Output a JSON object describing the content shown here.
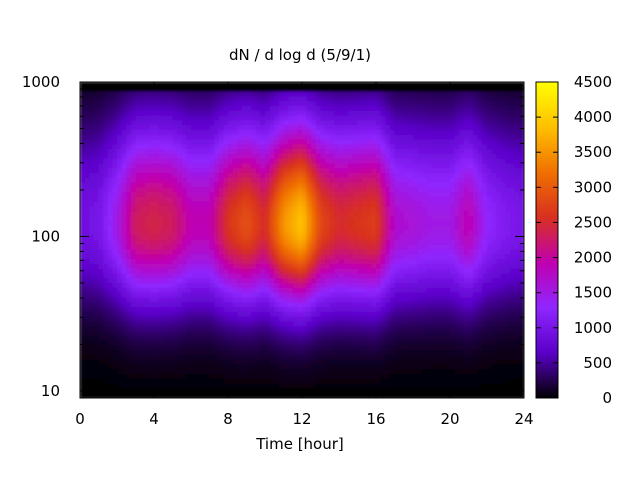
{
  "chart_data": {
    "type": "heatmap",
    "title": "dN / d log d (5/9/1)",
    "xlabel": "Time [hour]",
    "ylabel": "",
    "x_range": [
      0,
      24
    ],
    "y_range": [
      9,
      1000
    ],
    "y_scale": "log",
    "x_ticks": [
      0,
      4,
      8,
      12,
      16,
      20,
      24
    ],
    "x_tick_labels": [
      "0",
      "4",
      "8",
      "12",
      "16",
      "20",
      "24"
    ],
    "y_ticks": [
      10,
      100,
      1000
    ],
    "y_tick_labels": [
      "10",
      "100",
      "1000"
    ],
    "colorbar": {
      "range": [
        0,
        4500
      ],
      "ticks": [
        0,
        500,
        1000,
        1500,
        2000,
        2500,
        3000,
        3500,
        4000,
        4500
      ],
      "tick_labels": [
        "0",
        "500",
        "1000",
        "1500",
        "2000",
        "2500",
        "3000",
        "3500",
        "4000",
        "4500"
      ],
      "colormap": "gnuplot-pm3d",
      "colors": [
        "#000000",
        "#5a00c8",
        "#8f26ff",
        "#c000b0",
        "#d83020",
        "#f07000",
        "#ffc000",
        "#ffff00"
      ]
    },
    "mode_diameter": 120,
    "time_series": {
      "hours": [
        0,
        1,
        2,
        3,
        4,
        5,
        6,
        7,
        8,
        9,
        10,
        11,
        12,
        13,
        14,
        15,
        16,
        17,
        18,
        19,
        20,
        21,
        22,
        23,
        24
      ],
      "peak_value": [
        900,
        1000,
        1500,
        2300,
        2400,
        2300,
        1900,
        1900,
        2600,
        2900,
        2500,
        3500,
        3900,
        2800,
        2500,
        2600,
        2700,
        1700,
        1600,
        1500,
        1500,
        1900,
        1300,
        1100,
        1000
      ]
    },
    "grid": false,
    "legend": "none"
  }
}
